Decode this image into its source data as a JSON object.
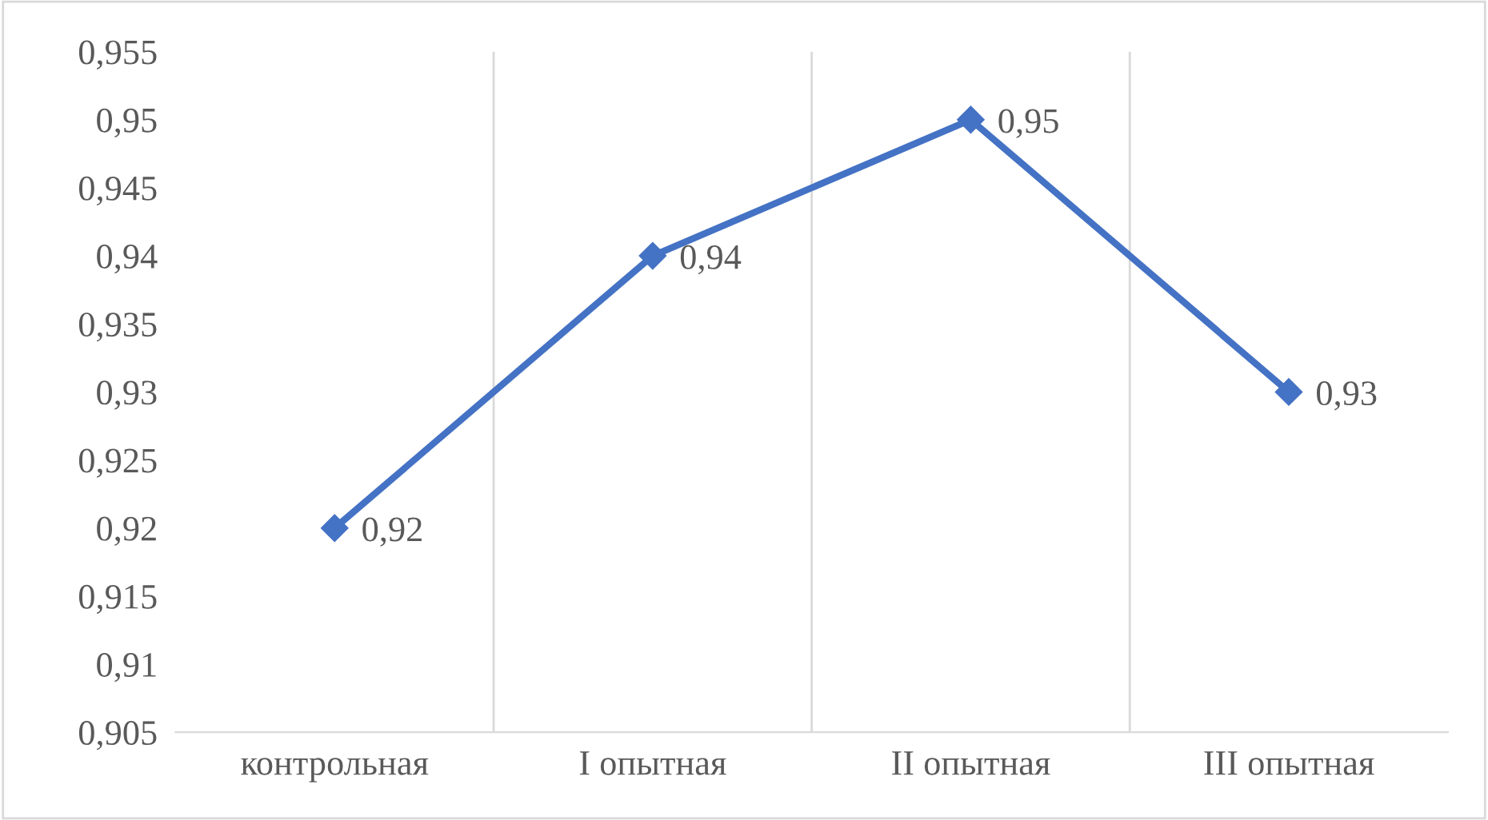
{
  "chart_data": {
    "type": "line",
    "categories": [
      "контрольная",
      "I опытная",
      "II опытная",
      "III опытная"
    ],
    "series": [
      {
        "color": "#4472c4",
        "values": [
          0.92,
          0.94,
          0.95,
          0.93
        ],
        "value_labels": [
          "0,92",
          "0,94",
          "0,95",
          "0,93"
        ]
      }
    ],
    "ylim": [
      0.905,
      0.955
    ],
    "yticks": [
      {
        "value": 0.905,
        "label": "0,905"
      },
      {
        "value": 0.91,
        "label": "0,91"
      },
      {
        "value": 0.915,
        "label": "0,915"
      },
      {
        "value": 0.92,
        "label": "0,92"
      },
      {
        "value": 0.925,
        "label": "0,925"
      },
      {
        "value": 0.93,
        "label": "0,93"
      },
      {
        "value": 0.935,
        "label": "0,935"
      },
      {
        "value": 0.94,
        "label": "0,94"
      },
      {
        "value": 0.945,
        "label": "0,945"
      },
      {
        "value": 0.95,
        "label": "0,95"
      },
      {
        "value": 0.955,
        "label": "0,955"
      }
    ],
    "grid": "x",
    "marker": "diamond",
    "line_style": "solid",
    "legend": false
  }
}
